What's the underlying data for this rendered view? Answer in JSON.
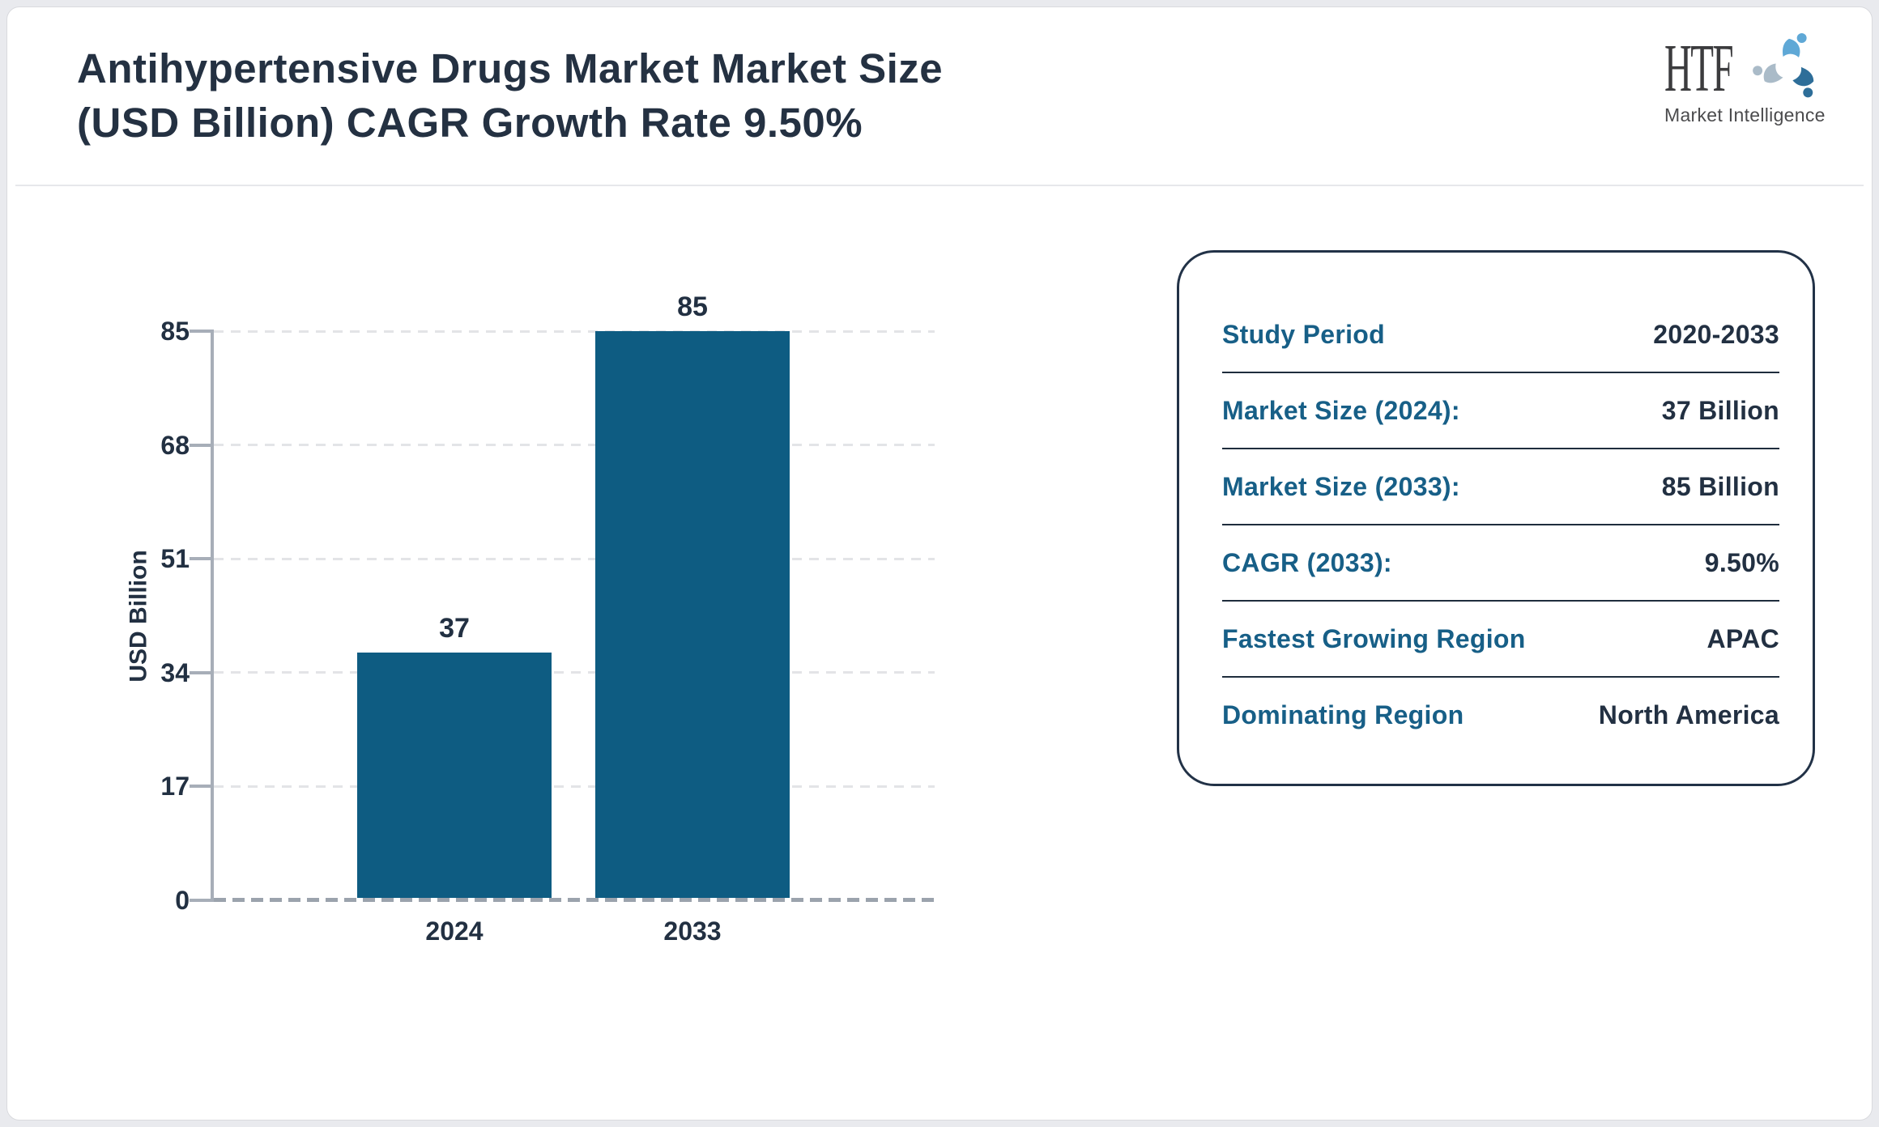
{
  "header": {
    "title_lines": [
      "Antihypertensive Drugs Market Market Size",
      "(USD Billion) CAGR Growth Rate 9.50%"
    ]
  },
  "logo": {
    "text": "HTF",
    "subtext": "Market Intelligence"
  },
  "chart_data": {
    "type": "bar",
    "categories": [
      "2024",
      "2033"
    ],
    "values": [
      37,
      85
    ],
    "value_labels": [
      "37",
      "85"
    ],
    "title": "",
    "xlabel": "",
    "ylabel": "USD Billion",
    "yticks": [
      0,
      17,
      34,
      51,
      68,
      85
    ],
    "ylim": [
      0,
      85
    ],
    "bar_color": "#0e5c82",
    "grid": "horizontal dashed lines, dashed gray baseline at 0",
    "legend": "none"
  },
  "info_card": {
    "rows": [
      {
        "label": "Study Period",
        "value": "2020-2033"
      },
      {
        "label": "Market Size (2024):",
        "value": "37 Billion"
      },
      {
        "label": "Market Size (2033):",
        "value": "85 Billion"
      },
      {
        "label": "CAGR (2033):",
        "value": "9.50%"
      },
      {
        "label": "Fastest Growing Region",
        "value": "APAC"
      },
      {
        "label": "Dominating Region",
        "value": "North America"
      }
    ]
  },
  "colors": {
    "bar_teal": "#0e5c82",
    "label_teal": "#175f87",
    "text_navy": "#223042",
    "card_border": "#223247",
    "axis_gray": "#a7aeb8",
    "page_background": "#e9eaee"
  }
}
